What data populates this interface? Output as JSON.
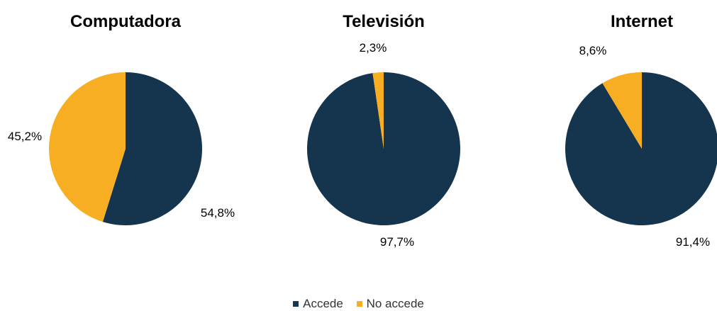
{
  "colors": {
    "accede": "#14354d",
    "no_accede": "#f8ae22"
  },
  "legend": {
    "accede": "Accede",
    "no_accede": "No accede"
  },
  "chart_data": [
    {
      "type": "pie",
      "title": "Computadora",
      "slices": [
        {
          "name": "Accede",
          "value": 54.8,
          "label": "54,8%"
        },
        {
          "name": "No accede",
          "value": 45.2,
          "label": "45,2%"
        }
      ]
    },
    {
      "type": "pie",
      "title": "Televisión",
      "slices": [
        {
          "name": "Accede",
          "value": 97.7,
          "label": "97,7%"
        },
        {
          "name": "No accede",
          "value": 2.3,
          "label": "2,3%"
        }
      ]
    },
    {
      "type": "pie",
      "title": "Internet",
      "slices": [
        {
          "name": "Accede",
          "value": 91.4,
          "label": "91,4%"
        },
        {
          "name": "No accede",
          "value": 8.6,
          "label": "8,6%"
        }
      ]
    }
  ]
}
